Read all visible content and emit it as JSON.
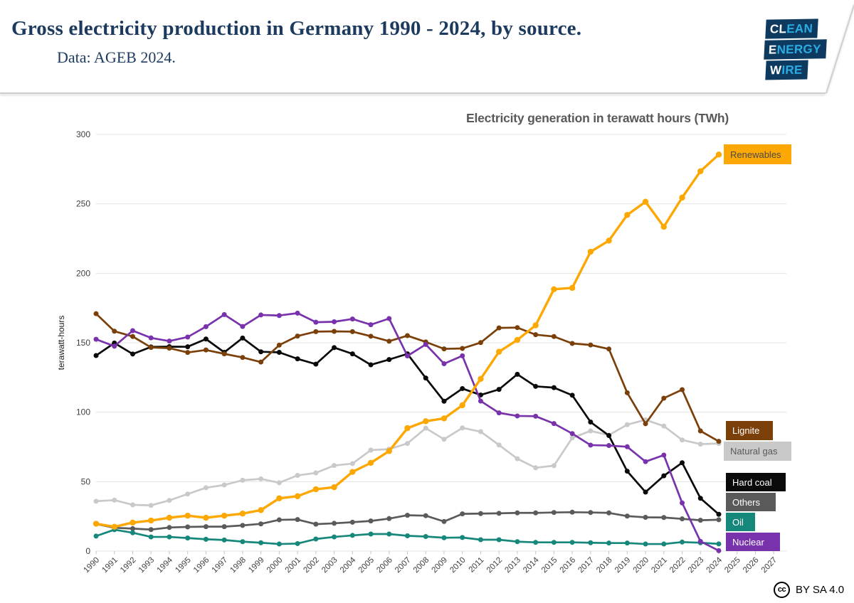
{
  "header": {
    "title": "Gross electricity production in Germany 1990 - 2024, by source.",
    "subtitle": "Data: AGEB 2024.",
    "logo": {
      "lines": [
        {
          "white": "CL",
          "cyan": "EAN"
        },
        {
          "white": "E",
          "cyan": "NERGY"
        },
        {
          "white": "W",
          "cyan": "IRE"
        }
      ],
      "navy": "#0E3A5F",
      "cyan": "#2AACE3"
    }
  },
  "footer": {
    "cc_glyph": "cc",
    "license": "BY SA 4.0"
  },
  "chart_data": {
    "type": "line",
    "title": "Electricity generation in terawatt hours (TWh)",
    "ylabel": "terawatt-hours",
    "ylim": [
      0,
      300
    ],
    "ytick_interval": 50,
    "grid": true,
    "legend_position": "right-inline",
    "x_labels": [
      "1990",
      "1991",
      "1992",
      "1993",
      "1994",
      "1995",
      "1996",
      "1997",
      "1998",
      "1999",
      "2000",
      "2001",
      "2002",
      "2003",
      "2004",
      "2005",
      "2006",
      "2007",
      "2008",
      "2009",
      "2010",
      "2011",
      "2012",
      "2013",
      "2014",
      "2015",
      "2016",
      "2017",
      "2018",
      "2019",
      "2020",
      "2021",
      "2022",
      "2023",
      "2024",
      "2025",
      "2026",
      "2027"
    ],
    "years": [
      1990,
      1991,
      1992,
      1993,
      1994,
      1995,
      1996,
      1997,
      1998,
      1999,
      2000,
      2001,
      2002,
      2003,
      2004,
      2005,
      2006,
      2007,
      2008,
      2009,
      2010,
      2011,
      2012,
      2013,
      2014,
      2015,
      2016,
      2017,
      2018,
      2019,
      2020,
      2021,
      2022,
      2023,
      2024
    ],
    "series": [
      {
        "name": "Renewables",
        "color": "#FCA702",
        "label_text_color": "#4A4A4A",
        "values": [
          19.7,
          17.5,
          20.5,
          22,
          24,
          25.5,
          24,
          25.5,
          27,
          29.5,
          38,
          39.5,
          44.5,
          46,
          57,
          63.5,
          72,
          88.5,
          93.5,
          95.5,
          105,
          124,
          143.5,
          152,
          162.5,
          188.5,
          189.5,
          215.5,
          223.5,
          242,
          251.5,
          233.5,
          254.5,
          273.5,
          285.5
        ]
      },
      {
        "name": "Lignite",
        "color": "#7B4009",
        "label_text_color": "#FFFFFF",
        "values": [
          170.9,
          158.3,
          154.5,
          146.6,
          146.1,
          143,
          144.8,
          142,
          139.4,
          136.1,
          148.3,
          154.8,
          158,
          158.2,
          158,
          154.7,
          151.1,
          155.1,
          150.6,
          145.6,
          145.9,
          150.1,
          160.7,
          160.9,
          155.8,
          154.5,
          149.5,
          148.4,
          145.5,
          114,
          91.7,
          110.1,
          116.2,
          86.5,
          79
        ]
      },
      {
        "name": "Natural gas",
        "color": "#C9C9C9",
        "label_text_color": "#595959",
        "values": [
          35.9,
          36.7,
          33.3,
          32.9,
          36.5,
          41.1,
          45.6,
          47.6,
          51,
          52,
          49.2,
          54.5,
          56.3,
          61.6,
          63,
          72.7,
          73.4,
          77.5,
          88.5,
          80.5,
          88.7,
          86,
          76.4,
          66.5,
          60,
          61.5,
          81.5,
          86.5,
          83.5,
          91,
          94.5,
          90,
          80,
          77,
          77.5
        ]
      },
      {
        "name": "Hard coal",
        "color": "#0A0A0A",
        "label_text_color": "#FFFFFF",
        "values": [
          140.8,
          149.8,
          141.9,
          147,
          147.2,
          147.1,
          152.7,
          143.1,
          153.4,
          143.5,
          143.1,
          138.4,
          134.6,
          146.5,
          142,
          134.1,
          137.9,
          142,
          124.6,
          107.9,
          117,
          112.4,
          116.4,
          127.3,
          118.6,
          117.7,
          112.2,
          92.9,
          83.2,
          57.5,
          42.5,
          54.2,
          63.6,
          38,
          26.5
        ]
      },
      {
        "name": "Others",
        "color": "#5A5A5A",
        "label_text_color": "#FFFFFF",
        "values": [
          19.5,
          16.8,
          16.2,
          15.5,
          17,
          17.4,
          17.6,
          17.6,
          18.5,
          19.6,
          22.5,
          22.7,
          19.4,
          20,
          20.8,
          21.7,
          23.4,
          25.8,
          25.5,
          21.3,
          26.8,
          27,
          27.2,
          27.5,
          27.5,
          27.8,
          28,
          27.8,
          27.5,
          25.2,
          24.3,
          24.2,
          23.2,
          22.2,
          22.6
        ]
      },
      {
        "name": "Oil",
        "color": "#16877B",
        "label_text_color": "#FFFFFF",
        "values": [
          10.8,
          15.4,
          13.2,
          10.2,
          10.2,
          9.4,
          8.5,
          8,
          6.8,
          6,
          5.1,
          5.4,
          8.7,
          10.2,
          11.3,
          12.3,
          12.3,
          11,
          10.5,
          9.6,
          9.8,
          8.2,
          8.2,
          6.8,
          6.3,
          6.3,
          6.3,
          6,
          5.8,
          5.8,
          5.1,
          5.1,
          6.5,
          6,
          5.2
        ]
      },
      {
        "name": "Nuclear",
        "color": "#7833AC",
        "label_text_color": "#FFFFFF",
        "values": [
          152.5,
          147.5,
          158.7,
          153.5,
          151.2,
          154.1,
          161.6,
          170.3,
          161.7,
          170,
          169.6,
          171.3,
          164.8,
          165.1,
          167.1,
          163,
          167.4,
          140.5,
          148.8,
          134.9,
          140.6,
          108,
          99.5,
          97.3,
          97.1,
          91.8,
          84.6,
          76.3,
          76,
          75.1,
          64.4,
          69.1,
          34.7,
          7,
          0.3
        ]
      }
    ]
  }
}
